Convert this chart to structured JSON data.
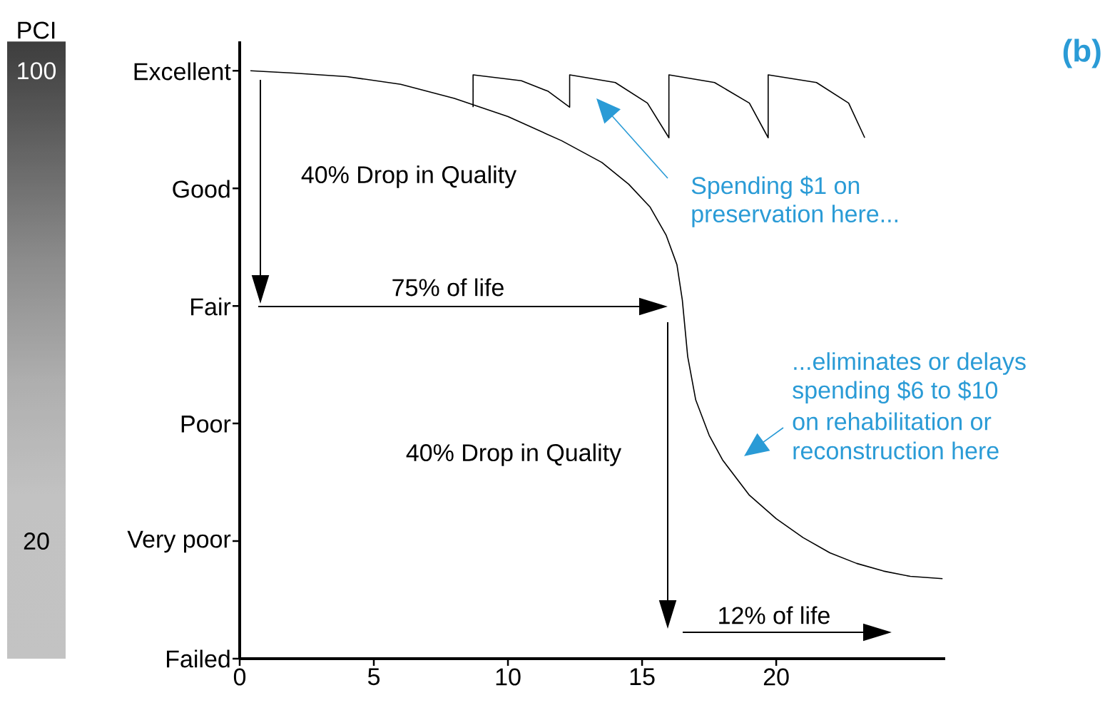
{
  "chart_data": {
    "type": "line",
    "series": [
      {
        "color": "#000000",
        "x": [
          0.4,
          2,
          4,
          6,
          8,
          10,
          12,
          13.5,
          14.5,
          15.3,
          15.9,
          16.3,
          16.5,
          16.7,
          17,
          17.5,
          18,
          19,
          20,
          21,
          22,
          23,
          24,
          25,
          26.2
        ],
        "values": [
          100,
          99.6,
          99,
          97.7,
          95.3,
          92.2,
          88.1,
          84.4,
          80.7,
          76.8,
          72,
          67,
          61,
          51.4,
          44,
          38,
          33.8,
          27.8,
          23.8,
          20.6,
          18,
          16.2,
          14.9,
          14,
          13.6
        ]
      },
      {
        "color": "#000000",
        "x": [
          8.7,
          8.7,
          10.5,
          11.5,
          12.3,
          12.3,
          14,
          15.2,
          16,
          16,
          17.7,
          19,
          19.7,
          19.7,
          21.5,
          22.7,
          23.3
        ],
        "values": [
          93.8,
          99.3,
          98.3,
          96.5,
          93.8,
          99.3,
          98,
          94.5,
          88.6,
          99.3,
          98,
          94.5,
          88.6,
          99.3,
          98,
          94.5,
          88.6
        ]
      }
    ],
    "xlim": [
      0,
      26.3
    ],
    "xticks": [
      0,
      5,
      10,
      15,
      20
    ],
    "ylabel": "PCI",
    "ylim": [
      0,
      105
    ],
    "yticks": [
      100,
      20
    ],
    "grid": false,
    "marker": "none",
    "line_style": "solid",
    "annotations": [
      "40% Drop in Quality",
      "75% of life",
      "40% Drop in Quality",
      "12% of life",
      "Spending $1 on",
      "preservation here...",
      "...eliminates or delays",
      "spending $6 to $10",
      "on rehabilitation or",
      "reconstruction here",
      "**(b)**",
      "Excellent",
      "Good",
      "Fair",
      "Poor",
      "Very poor",
      "Failed"
    ]
  }
}
